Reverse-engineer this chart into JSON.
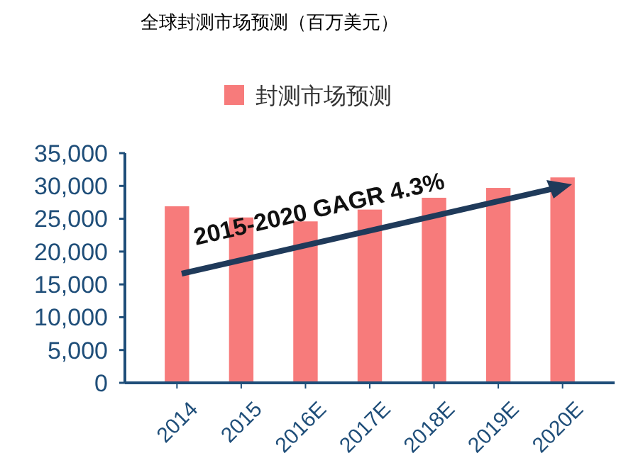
{
  "chart_data": {
    "type": "bar",
    "title": "全球封测市场预测（百万美元）",
    "categories": [
      "2014",
      "2015",
      "2016E",
      "2017E",
      "2018E",
      "2019E",
      "2020E"
    ],
    "series": [
      {
        "name": "封测市场预测",
        "color": "#f77b7b",
        "values": [
          26900,
          25200,
          24600,
          26400,
          28200,
          29700,
          31300
        ]
      }
    ],
    "ylim": [
      0,
      35000
    ],
    "yticks": [
      {
        "value": 0,
        "label": "0"
      },
      {
        "value": 5000,
        "label": "5,000"
      },
      {
        "value": 10000,
        "label": "10,000"
      },
      {
        "value": 15000,
        "label": "15,000"
      },
      {
        "value": 20000,
        "label": "20,000"
      },
      {
        "value": 25000,
        "label": "25,000"
      },
      {
        "value": 30000,
        "label": "30,000"
      },
      {
        "value": 35000,
        "label": "35,000"
      }
    ],
    "legend": "top",
    "grid": false,
    "annotations": [
      "2015-2020 GAGR 4.3%"
    ]
  }
}
